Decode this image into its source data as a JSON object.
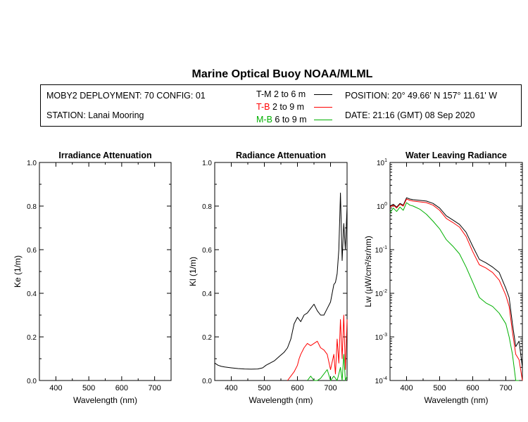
{
  "page": {
    "title": "Marine Optical Buoy NOAA/MLML"
  },
  "info": {
    "deployment": "MOBY2 DEPLOYMENT: 70 CONFIG: 01",
    "station": "STATION: Lanai Mooring",
    "position": "POSITION: 20° 49.66' N   157° 11.61' W",
    "date": "DATE: 21:16 (GMT) 08 Sep 2020",
    "legend": [
      {
        "code": "T-M",
        "depth": "2 to 6  m",
        "color": "#000000"
      },
      {
        "code": "T-B",
        "depth": "2 to 9  m",
        "color": "#ff0000"
      },
      {
        "code": "M-B",
        "depth": "6 to 9  m",
        "color": "#00b000"
      }
    ]
  },
  "chart_data": [
    {
      "type": "line",
      "title": "Irradiance Attenuation",
      "xlabel": "Wavelength (nm)",
      "ylabel": "Ke  (1/m)",
      "xlim": [
        350,
        750
      ],
      "ylim": [
        0,
        1.0
      ],
      "xticks": [
        400,
        500,
        600,
        700
      ],
      "yticks": [
        "0.0",
        "0.2",
        "0.4",
        "0.6",
        "0.8",
        "1.0"
      ],
      "series": []
    },
    {
      "type": "line",
      "title": "Radiance Attenuation",
      "xlabel": "Wavelength (nm)",
      "ylabel": "Kl  (1/m)",
      "xlim": [
        350,
        750
      ],
      "ylim": [
        0,
        1.0
      ],
      "xticks": [
        400,
        500,
        600,
        700
      ],
      "yticks": [
        "0.0",
        "0.2",
        "0.4",
        "0.6",
        "0.8",
        "1.0"
      ],
      "series": [
        {
          "name": "T-M",
          "color": "#000000",
          "x": [
            350,
            355,
            360,
            370,
            380,
            390,
            400,
            420,
            440,
            460,
            480,
            495,
            505,
            515,
            530,
            545,
            560,
            570,
            580,
            590,
            600,
            610,
            620,
            630,
            640,
            650,
            660,
            670,
            680,
            690,
            700,
            710,
            715,
            720,
            725,
            730,
            735,
            740,
            745,
            750
          ],
          "y": [
            0.08,
            0.075,
            0.07,
            0.065,
            0.062,
            0.06,
            0.058,
            0.055,
            0.053,
            0.052,
            0.053,
            0.058,
            0.07,
            0.078,
            0.09,
            0.11,
            0.13,
            0.15,
            0.19,
            0.26,
            0.29,
            0.27,
            0.3,
            0.31,
            0.33,
            0.35,
            0.32,
            0.3,
            0.3,
            0.33,
            0.36,
            0.44,
            0.45,
            0.49,
            0.6,
            0.86,
            0.55,
            0.72,
            0.6,
            0.8
          ]
        },
        {
          "name": "T-B",
          "color": "#ff0000",
          "x": [
            570,
            580,
            590,
            600,
            605,
            610,
            620,
            630,
            640,
            650,
            660,
            670,
            680,
            690,
            700,
            710,
            715,
            720,
            725,
            730,
            735,
            740,
            745,
            750
          ],
          "y": [
            0.0,
            0.02,
            0.04,
            0.07,
            0.1,
            0.12,
            0.15,
            0.17,
            0.16,
            0.17,
            0.18,
            0.15,
            0.14,
            0.12,
            0.05,
            0.12,
            0.03,
            0.19,
            0.08,
            0.28,
            0.1,
            0.3,
            0.05,
            0.28
          ]
        },
        {
          "name": "M-B",
          "color": "#00b000",
          "x": [
            630,
            640,
            650,
            660,
            670,
            690,
            700,
            710,
            720,
            725,
            730,
            735,
            740,
            745,
            750
          ],
          "y": [
            0.0,
            0.02,
            0.0,
            0.0,
            0.01,
            0.05,
            0.0,
            0.02,
            0.0,
            0.03,
            0.06,
            0.0,
            0.12,
            0.0,
            0.02
          ]
        }
      ]
    },
    {
      "type": "line",
      "title": "Water Leaving Radiance",
      "xlabel": "Wavelength (nm)",
      "ylabel": "Lw  (µW/cm²/sr/nm)",
      "yscale": "log",
      "xlim": [
        350,
        750
      ],
      "ylim": [
        0.0001,
        10
      ],
      "xticks": [
        400,
        500,
        600,
        700
      ],
      "yticks": [
        "10^1",
        "10^0",
        "10^-1",
        "10^-2",
        "10^-3",
        "10^-4"
      ],
      "series": [
        {
          "name": "T-M",
          "color": "#000000",
          "x": [
            350,
            360,
            370,
            380,
            390,
            400,
            410,
            420,
            440,
            460,
            480,
            500,
            520,
            540,
            560,
            580,
            600,
            620,
            640,
            660,
            680,
            700,
            710,
            720,
            730,
            740,
            750
          ],
          "y": [
            1.0,
            1.1,
            0.95,
            1.15,
            1.05,
            1.55,
            1.45,
            1.4,
            1.35,
            1.3,
            1.15,
            0.9,
            0.6,
            0.48,
            0.38,
            0.25,
            0.12,
            0.06,
            0.05,
            0.04,
            0.03,
            0.013,
            0.008,
            0.002,
            0.0006,
            0.0008,
            0.0002
          ]
        },
        {
          "name": "T-B",
          "color": "#ff0000",
          "x": [
            350,
            360,
            370,
            380,
            390,
            400,
            410,
            420,
            440,
            460,
            480,
            500,
            520,
            540,
            560,
            580,
            600,
            620,
            640,
            660,
            680,
            700,
            710,
            720,
            730,
            740,
            750
          ],
          "y": [
            0.95,
            1.05,
            0.9,
            1.1,
            1.0,
            1.45,
            1.35,
            1.3,
            1.25,
            1.2,
            1.05,
            0.8,
            0.52,
            0.42,
            0.33,
            0.2,
            0.09,
            0.045,
            0.038,
            0.03,
            0.02,
            0.009,
            0.005,
            0.0013,
            0.0004,
            0.0003,
            0.0001
          ]
        },
        {
          "name": "M-B",
          "color": "#00b000",
          "x": [
            350,
            360,
            370,
            380,
            390,
            400,
            410,
            420,
            440,
            460,
            480,
            500,
            520,
            540,
            560,
            580,
            600,
            620,
            640,
            660,
            680,
            700,
            710,
            720,
            730,
            740
          ],
          "y": [
            0.7,
            0.9,
            0.75,
            0.95,
            0.8,
            1.2,
            1.05,
            1.0,
            0.85,
            0.65,
            0.45,
            0.3,
            0.17,
            0.12,
            0.08,
            0.04,
            0.018,
            0.008,
            0.006,
            0.005,
            0.0035,
            0.002,
            0.001,
            0.0004,
            0.0001,
            0.0001
          ]
        }
      ]
    }
  ]
}
